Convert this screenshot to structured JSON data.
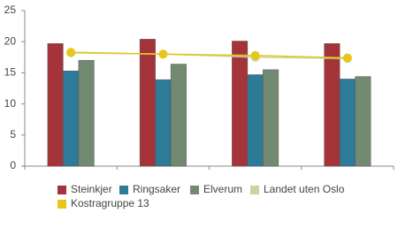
{
  "chart_data": {
    "type": "bar",
    "categories": [
      null,
      null,
      null,
      null
    ],
    "ylim": [
      0,
      25
    ],
    "yticks": [
      0,
      5,
      10,
      15,
      20,
      25
    ],
    "grid": false,
    "series": [
      {
        "name": "Steinkjer",
        "color": "#a5333a",
        "type": "bar",
        "values": [
          19.7,
          20.4,
          20.1,
          19.7
        ]
      },
      {
        "name": "Ringsaker",
        "color": "#2e7a99",
        "type": "bar",
        "values": [
          15.3,
          13.9,
          14.7,
          14.0
        ]
      },
      {
        "name": "Elverum",
        "color": "#738a72",
        "type": "bar",
        "values": [
          17.0,
          16.4,
          15.5,
          14.4
        ]
      },
      {
        "name": "Landet uten Oslo",
        "color": "#c5d6a0",
        "type": "line",
        "values": [
          18.2,
          18.0,
          17.5,
          17.3
        ]
      },
      {
        "name": "Kostragruppe 13",
        "color": "#e8c619",
        "type": "line",
        "values": [
          18.3,
          18.0,
          17.8,
          17.4
        ]
      }
    ]
  }
}
